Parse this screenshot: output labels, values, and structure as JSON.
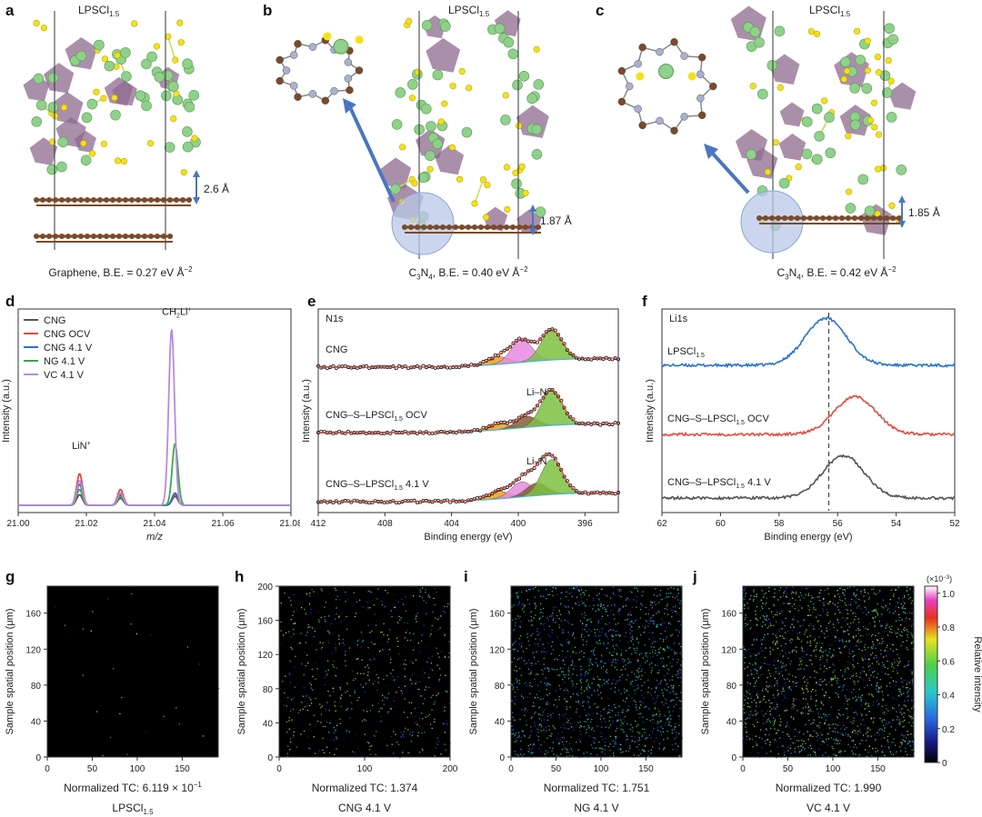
{
  "panel_labels": [
    "a",
    "b",
    "c",
    "d",
    "e",
    "f",
    "g",
    "h",
    "i",
    "j"
  ],
  "structures": {
    "a": {
      "title_main": "LPSCl",
      "title_sub": "1.5",
      "distance": "2.6 Å",
      "caption_pre": "Graphene, B.E. = 0.27 eV Å",
      "caption_sup": "−2"
    },
    "b": {
      "title_main": "LPSCl",
      "title_sub": "1.5",
      "distance": "1.87 Å",
      "caption_pre": "C",
      "caption_sub": "3",
      "caption_mid": "N",
      "caption_sub2": "4",
      "caption_post": ", B.E. = 0.40 eV Å",
      "caption_sup": "−2"
    },
    "c": {
      "title_main": "LPSCl",
      "title_sub": "1.5",
      "distance": "1.85 Å",
      "caption_pre": "C",
      "caption_sub": "3",
      "caption_mid": "N",
      "caption_sub2": "4",
      "caption_post": ", B.E. = 0.42 eV Å",
      "caption_sup": "−2"
    }
  },
  "colors": {
    "atom_green": "#8fd18a",
    "atom_yellow": "#f2e21a",
    "poly": "#8e6a8e",
    "carbon": "#7a4a2a",
    "nitrogen": "#aab0d0",
    "arrow": "#4a76c0",
    "circle": "#b9c8e8",
    "grey": "#555555",
    "red": "#e04a3a",
    "blue": "#2a73c8",
    "green": "#3aa84a",
    "purple": "#b98ae0"
  },
  "chart_data": [
    {
      "id": "d",
      "type": "line",
      "xlabel": "m/z",
      "ylabel": "Intensity (a.u.)",
      "xlim": [
        21.0,
        21.08
      ],
      "xticks": [
        "21.00",
        "21.02",
        "21.04",
        "21.06",
        "21.08"
      ],
      "annotations": [
        {
          "text": "LiN",
          "sup": "+"
        },
        {
          "text": "CH",
          "sub": "2",
          "text2": "Li",
          "sup": "+"
        }
      ],
      "series": [
        {
          "name": "CNG",
          "color": "#555555",
          "peaks": [
            [
              21.018,
              0.06
            ],
            [
              21.03,
              0.04
            ],
            [
              21.046,
              0.05
            ]
          ]
        },
        {
          "name": "CNG OCV",
          "color": "#e04a3a",
          "peaks": [
            [
              21.018,
              0.18
            ],
            [
              21.03,
              0.09
            ],
            [
              21.046,
              0.06
            ]
          ]
        },
        {
          "name": "CNG 4.1 V",
          "color": "#2a73c8",
          "peaks": [
            [
              21.018,
              0.12
            ],
            [
              21.03,
              0.06
            ],
            [
              21.046,
              0.07
            ]
          ]
        },
        {
          "name": "NG 4.1 V",
          "color": "#3aa84a",
          "peaks": [
            [
              21.018,
              0.09
            ],
            [
              21.03,
              0.05
            ],
            [
              21.046,
              0.35
            ]
          ]
        },
        {
          "name": "VC 4.1 V",
          "color": "#b98ae0",
          "peaks": [
            [
              21.018,
              0.14
            ],
            [
              21.03,
              0.07
            ],
            [
              21.045,
              1.0
            ]
          ]
        }
      ]
    },
    {
      "id": "e",
      "type": "line",
      "title": "N1s",
      "xlabel": "Binding energy (eV)",
      "ylabel": "Intensity (a.u.)",
      "xlim": [
        412,
        394
      ],
      "xticks": [
        "412",
        "408",
        "404",
        "400",
        "396"
      ],
      "series": [
        {
          "name": "CNG",
          "components": [
            [
              401.2,
              0.15,
              "#e8a020"
            ],
            [
              399.8,
              0.45,
              "#e88ae0"
            ],
            [
              398.0,
              0.6,
              "#7cc040"
            ]
          ]
        },
        {
          "name": "CNG–S–LPSCl",
          "sub": "1.5",
          "name_post": " OCV",
          "label2": "Li–N",
          "components": [
            [
              401.2,
              0.12,
              "#e8a020"
            ],
            [
              399.5,
              0.22,
              "#8a5a3a"
            ],
            [
              398.0,
              0.7,
              "#7cc040"
            ]
          ]
        },
        {
          "name": "CNG–S–LPSCl",
          "sub": "1.5",
          "name_post": " 4.1 V",
          "label2": "Li–N",
          "components": [
            [
              401.2,
              0.15,
              "#e8a020"
            ],
            [
              399.8,
              0.3,
              "#e88ae0"
            ],
            [
              398.9,
              0.25,
              "#8a5a3a"
            ],
            [
              398.0,
              0.7,
              "#7cc040"
            ]
          ]
        }
      ]
    },
    {
      "id": "f",
      "type": "line",
      "title": "Li1s",
      "xlabel": "Binding energy (eV)",
      "ylabel": "Intensity (a.u.)",
      "xlim": [
        62,
        52
      ],
      "xticks": [
        "62",
        "60",
        "58",
        "56",
        "54",
        "52"
      ],
      "reference_line": 56.3,
      "series": [
        {
          "name": "LPSCl",
          "sub": "1.5",
          "color": "#2a73c8",
          "center": 56.4,
          "height": 1.0
        },
        {
          "name": "CNG–S–LPSCl",
          "sub": "1.5",
          "name_post": " OCV",
          "color": "#e04a3a",
          "center": 55.4,
          "height": 0.8
        },
        {
          "name": "CNG–S–LPSCl",
          "sub": "1.5",
          "name_post": " 4.1 V",
          "color": "#555555",
          "center": 55.8,
          "height": 0.9
        }
      ]
    },
    {
      "id": "g",
      "type": "heatmap",
      "ylabel": "Sample spatial position (μm)",
      "caption": "Normalized TC: 6.119 × 10",
      "caption_sup": "−1",
      "label": "LPSCl",
      "label_sub": "1.5",
      "xticks": [
        "0",
        "50",
        "100",
        "150"
      ],
      "yticks": [
        "0",
        "40",
        "80",
        "120",
        "160"
      ],
      "density": 0.01
    },
    {
      "id": "h",
      "type": "heatmap",
      "ylabel": "Sample spatial position (μm)",
      "caption": "Normalized TC: 1.374",
      "label": "CNG 4.1 V",
      "xticks": [
        "0",
        "100",
        "200"
      ],
      "yticks": [
        "0",
        "40",
        "80",
        "120",
        "160",
        "200"
      ],
      "density": 0.25
    },
    {
      "id": "i",
      "type": "heatmap",
      "ylabel": "Sample spatial position (μm)",
      "caption": "Normalized TC: 1.751",
      "label": "NG 4.1 V",
      "xticks": [
        "0",
        "50",
        "100",
        "150"
      ],
      "yticks": [
        "0",
        "40",
        "80",
        "120",
        "160"
      ],
      "density": 0.6
    },
    {
      "id": "j",
      "type": "heatmap",
      "ylabel": "Sample spatial position (μm)",
      "caption": "Normalized TC: 1.990",
      "label": "VC 4.1 V",
      "xticks": [
        "0",
        "50",
        "100",
        "150"
      ],
      "yticks": [
        "0",
        "40",
        "80",
        "120",
        "160"
      ],
      "density": 0.7
    }
  ],
  "colorbar": {
    "title": "Relative intensity",
    "exponent": "(×10",
    "exponent_sup": "−3",
    "exponent_post": ")",
    "ticks": [
      "0",
      "0.2",
      "0.4",
      "0.6",
      "0.8",
      "1.0"
    ]
  }
}
